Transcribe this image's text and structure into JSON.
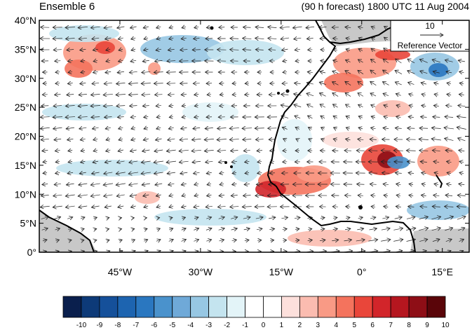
{
  "header": {
    "title_left": "Ensemble 6",
    "title_right": "(90 h forecast) 1800 UTC 11 Aug 2004"
  },
  "map": {
    "y_ticks": [
      "40°N",
      "35°N",
      "30°N",
      "25°N",
      "20°N",
      "15°N",
      "10°N",
      "5°N",
      "0°"
    ],
    "x_ticks": [
      "45°W",
      "30°W",
      "15°W",
      "0°",
      "15°E"
    ],
    "lon_range": [
      -60,
      20
    ],
    "lat_range": [
      0,
      40
    ],
    "land_color": "#c8c8c8",
    "coast_color": "#000000"
  },
  "reference_vector": {
    "value": "10",
    "label": "Reference Vector"
  },
  "colorbar": {
    "labels": [
      "-10",
      "-9",
      "-8",
      "-7",
      "-6",
      "-5",
      "-4",
      "-3",
      "-2",
      "-1",
      "0",
      "1",
      "2",
      "3",
      "4",
      "5",
      "6",
      "7",
      "8",
      "9",
      "10"
    ],
    "colors": [
      "#0a1f4d",
      "#0d3a78",
      "#15509a",
      "#1d64b0",
      "#2a77c0",
      "#4a92cc",
      "#6fa9d8",
      "#97c7e3",
      "#c4e4ef",
      "#e3f4f8",
      "#ffffff",
      "#ffffff",
      "#fde0dc",
      "#fbbcb0",
      "#f99a85",
      "#f4735d",
      "#e9463a",
      "#d2252a",
      "#b5161f",
      "#8e0e16",
      "#5a0509"
    ]
  }
}
